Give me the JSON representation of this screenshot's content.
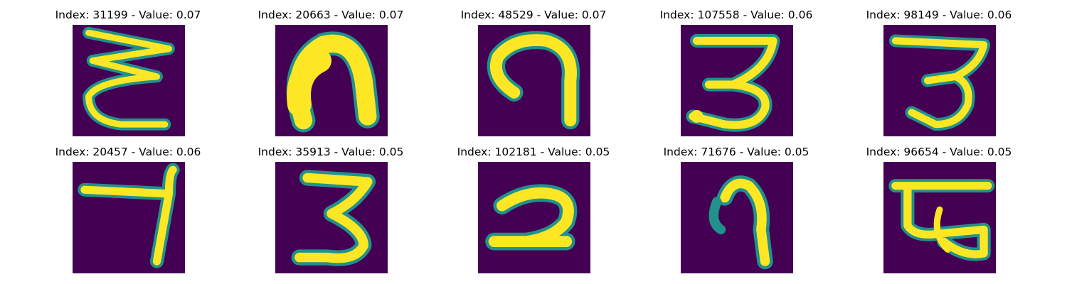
{
  "panels": [
    {
      "index_label": "Index: 31199 - Value: 0.07",
      "glyph": "zigzag-three-strokes"
    },
    {
      "index_label": "Index: 20663 - Value: 0.07",
      "glyph": "arch-n"
    },
    {
      "index_label": "Index: 48529 - Value: 0.07",
      "glyph": "hook-curl"
    },
    {
      "index_label": "Index: 107558 - Value: 0.06",
      "glyph": "digit-3-flat-top"
    },
    {
      "index_label": "Index: 98149 - Value: 0.06",
      "glyph": "digit-3-slanted"
    },
    {
      "index_label": "Index: 20457 - Value: 0.06",
      "glyph": "digit-7"
    },
    {
      "index_label": "Index: 35913 - Value: 0.05",
      "glyph": "digit-3"
    },
    {
      "index_label": "Index: 102181 - Value: 0.05",
      "glyph": "digit-2"
    },
    {
      "index_label": "Index: 71676 - Value: 0.05",
      "glyph": "digit-9-curl"
    },
    {
      "index_label": "Index: 96654 - Value: 0.05",
      "glyph": "boxed-glyph"
    }
  ],
  "colors": {
    "background": "#440154",
    "stroke": "#fde725",
    "edge": "#21918c"
  }
}
